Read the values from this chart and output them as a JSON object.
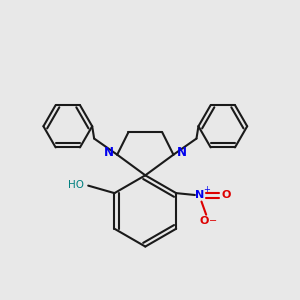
{
  "background_color": "#e8e8e8",
  "bond_color": "#1a1a1a",
  "N_color": "#0000ee",
  "O_color": "#dd0000",
  "H_color": "#008080",
  "line_width": 1.5,
  "figsize": [
    3.0,
    3.0
  ],
  "dpi": 100,
  "xlim": [
    -1.6,
    1.6
  ],
  "ylim": [
    -1.6,
    1.6
  ]
}
